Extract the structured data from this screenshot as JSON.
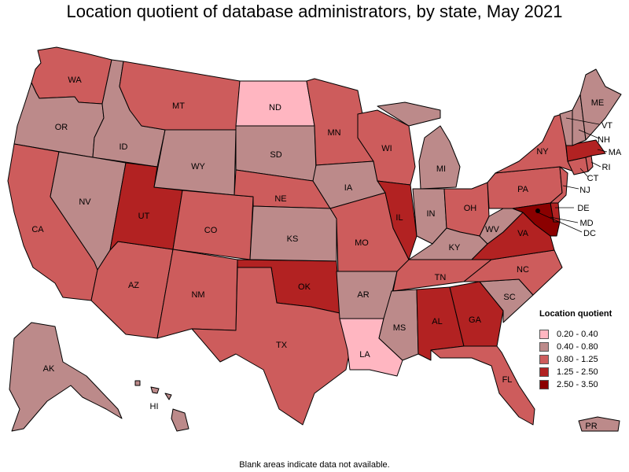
{
  "title": "Location quotient of database administrators, by state, May 2021",
  "footnote": "Blank areas indicate data not available.",
  "legend": {
    "title": "Location quotient",
    "items": [
      {
        "label": "0.20 - 0.40",
        "color": "#ffb6c1"
      },
      {
        "label": "0.40 - 0.80",
        "color": "#bc8a8a"
      },
      {
        "label": "0.80 - 1.25",
        "color": "#cd5c5c"
      },
      {
        "label": "1.25 - 2.50",
        "color": "#b22222"
      },
      {
        "label": "2.50 - 3.50",
        "color": "#8b0000"
      }
    ]
  },
  "states": [
    {
      "code": "WA",
      "bin": 2
    },
    {
      "code": "OR",
      "bin": 1
    },
    {
      "code": "CA",
      "bin": 2
    },
    {
      "code": "ID",
      "bin": 1
    },
    {
      "code": "NV",
      "bin": 1
    },
    {
      "code": "AZ",
      "bin": 2
    },
    {
      "code": "UT",
      "bin": 3
    },
    {
      "code": "MT",
      "bin": 2
    },
    {
      "code": "WY",
      "bin": 1
    },
    {
      "code": "CO",
      "bin": 2
    },
    {
      "code": "NM",
      "bin": 2
    },
    {
      "code": "ND",
      "bin": 0
    },
    {
      "code": "SD",
      "bin": 1
    },
    {
      "code": "NE",
      "bin": 2
    },
    {
      "code": "KS",
      "bin": 1
    },
    {
      "code": "OK",
      "bin": 3
    },
    {
      "code": "TX",
      "bin": 2
    },
    {
      "code": "MN",
      "bin": 2
    },
    {
      "code": "IA",
      "bin": 1
    },
    {
      "code": "MO",
      "bin": 2
    },
    {
      "code": "AR",
      "bin": 1
    },
    {
      "code": "LA",
      "bin": 0
    },
    {
      "code": "WI",
      "bin": 2
    },
    {
      "code": "IL",
      "bin": 3
    },
    {
      "code": "MI",
      "bin": 1
    },
    {
      "code": "IN",
      "bin": 1
    },
    {
      "code": "OH",
      "bin": 2
    },
    {
      "code": "KY",
      "bin": 1
    },
    {
      "code": "TN",
      "bin": 2
    },
    {
      "code": "MS",
      "bin": 1
    },
    {
      "code": "AL",
      "bin": 3
    },
    {
      "code": "GA",
      "bin": 3
    },
    {
      "code": "FL",
      "bin": 2
    },
    {
      "code": "SC",
      "bin": 1
    },
    {
      "code": "NC",
      "bin": 2
    },
    {
      "code": "VA",
      "bin": 3
    },
    {
      "code": "WV",
      "bin": 1
    },
    {
      "code": "PA",
      "bin": 2
    },
    {
      "code": "NY",
      "bin": 2
    },
    {
      "code": "VT",
      "bin": 1
    },
    {
      "code": "NH",
      "bin": 1
    },
    {
      "code": "ME",
      "bin": 1
    },
    {
      "code": "MA",
      "bin": 3
    },
    {
      "code": "RI",
      "bin": 2
    },
    {
      "code": "CT",
      "bin": 2
    },
    {
      "code": "NJ",
      "bin": 2
    },
    {
      "code": "DE",
      "bin": 3
    },
    {
      "code": "MD",
      "bin": 4
    },
    {
      "code": "DC",
      "bin": 4
    },
    {
      "code": "AK",
      "bin": 1
    },
    {
      "code": "HI",
      "bin": 1
    },
    {
      "code": "PR",
      "bin": 1
    }
  ]
}
